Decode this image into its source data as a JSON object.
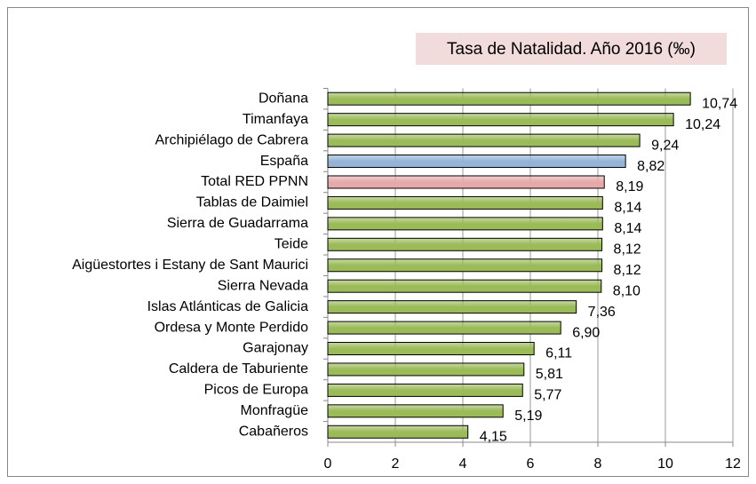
{
  "chart_data": {
    "type": "bar",
    "orientation": "horizontal",
    "title": "Tasa de Natalidad. Año 2016 (‰)",
    "categories": [
      "Doñana",
      "Timanfaya",
      "Archipiélago de Cabrera",
      "España",
      "Total RED PPNN",
      "Tablas de Daimiel",
      "Sierra de Guadarrama",
      "Teide",
      "Aigüestortes i Estany de Sant Maurici",
      "Sierra Nevada",
      "Islas Atlánticas de Galicia",
      "Ordesa y Monte Perdido",
      "Garajonay",
      "Caldera de Taburiente",
      "Picos de Europa",
      "Monfragüe",
      "Cabañeros"
    ],
    "values": [
      10.74,
      10.24,
      9.24,
      8.82,
      8.19,
      8.14,
      8.14,
      8.12,
      8.12,
      8.1,
      7.36,
      6.9,
      6.11,
      5.81,
      5.77,
      5.19,
      4.15
    ],
    "value_labels": [
      "10,74",
      "10,24",
      "9,24",
      "8,82",
      "8,19",
      "8,14",
      "8,14",
      "8,12",
      "8,12",
      "8,10",
      "7,36",
      "6,90",
      "6,11",
      "5,81",
      "5,77",
      "5,19",
      "4,15"
    ],
    "colors": [
      "#9bbb59",
      "#9bbb59",
      "#9bbb59",
      "#95b3d7",
      "#e6a9a9",
      "#9bbb59",
      "#9bbb59",
      "#9bbb59",
      "#9bbb59",
      "#9bbb59",
      "#9bbb59",
      "#9bbb59",
      "#9bbb59",
      "#9bbb59",
      "#9bbb59",
      "#9bbb59",
      "#9bbb59"
    ],
    "xlim": [
      0,
      12
    ],
    "xticks": [
      0,
      2,
      4,
      6,
      8,
      10,
      12
    ],
    "grid": true
  }
}
